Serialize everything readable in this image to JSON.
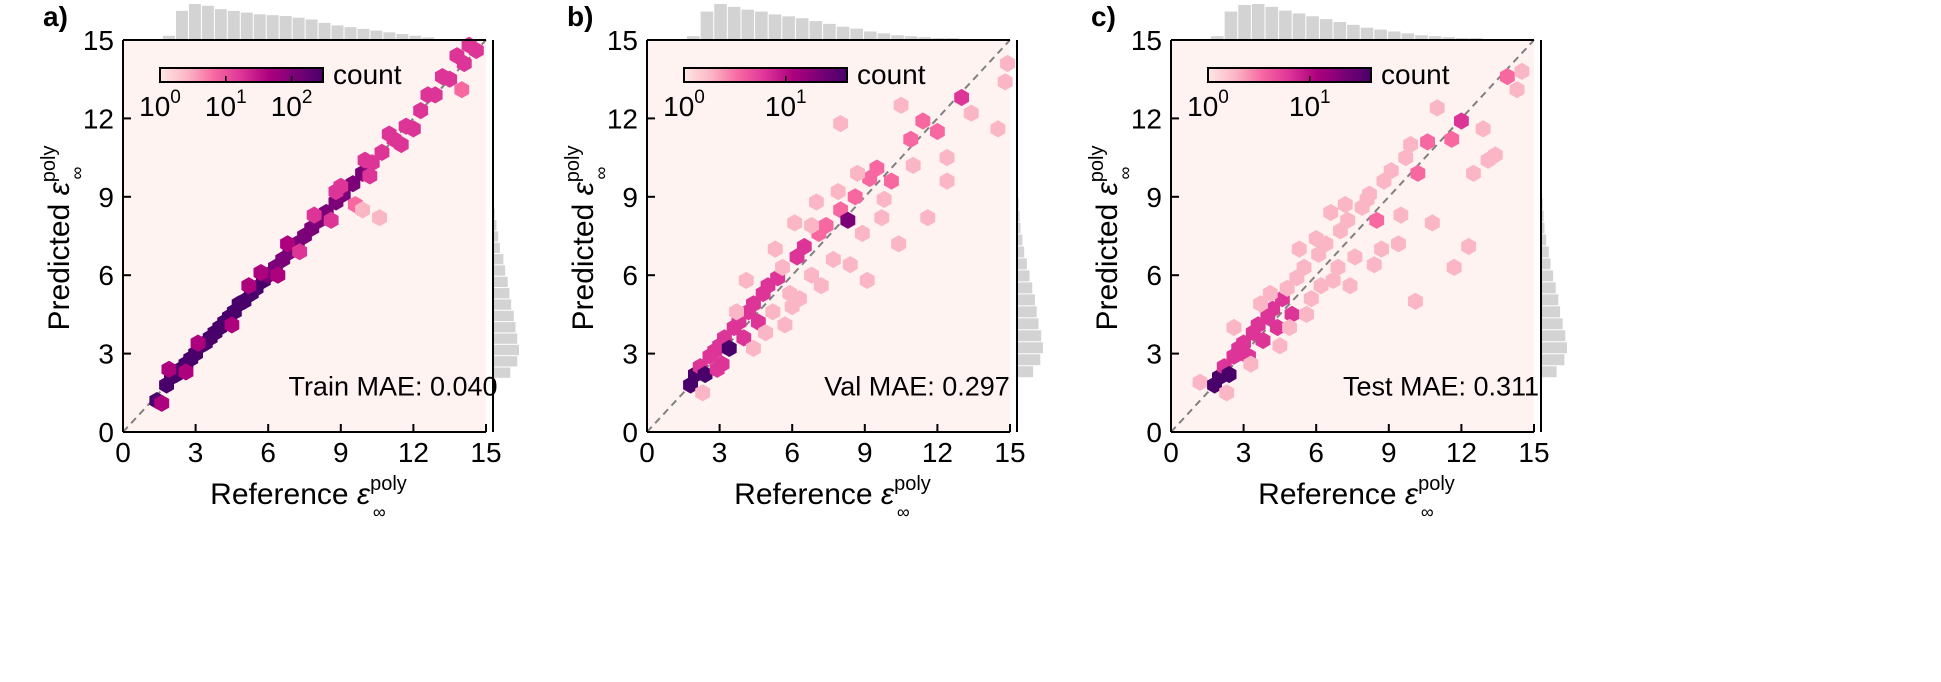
{
  "figure": {
    "colormap": [
      "#fde8e4",
      "#fbb6c6",
      "#f768a1",
      "#dd3497",
      "#ae017e",
      "#7a0177",
      "#49006a"
    ],
    "background_color": "#fff3f1",
    "histogram_color": "#d3d3d3",
    "diagonal_color": "#808080"
  },
  "chart_data": [
    {
      "type": "hexbin",
      "panel_label": "a)",
      "xlabel": "Reference ε∞poly",
      "ylabel": "Predicted ε∞poly",
      "xlim": [
        0,
        15
      ],
      "ylim": [
        0,
        15
      ],
      "ticks": [
        "0",
        "3",
        "6",
        "9",
        "12",
        "15"
      ],
      "annotation": "Train MAE: 0.040",
      "colorbar": {
        "label": "count",
        "scale": "log",
        "range": [
          1,
          300
        ],
        "tick_labels": [
          "10^0",
          "10^1",
          "10^2"
        ]
      },
      "legend_position": "top-left",
      "diagonal": "y = x",
      "mae": 0.04,
      "hist_x": [
        5,
        34,
        42,
        40,
        36,
        34,
        32,
        30,
        29,
        28,
        26,
        24,
        20,
        17,
        15,
        13,
        11,
        9,
        7,
        5,
        3
      ],
      "hist_y": [
        0,
        20,
        28,
        30,
        28,
        26,
        24,
        21,
        19,
        17,
        14,
        12,
        8,
        6,
        4,
        2,
        1,
        1,
        1
      ],
      "points": [
        [
          1.4,
          1.2
        ],
        [
          1.6,
          1.1
        ],
        [
          1.8,
          1.8
        ],
        [
          2.0,
          2.1
        ],
        [
          2.2,
          2.2
        ],
        [
          2.4,
          2.4
        ],
        [
          2.6,
          2.6
        ],
        [
          2.8,
          2.8
        ],
        [
          3.0,
          3.0
        ],
        [
          3.2,
          3.3
        ],
        [
          3.4,
          3.4
        ],
        [
          3.6,
          3.6
        ],
        [
          3.8,
          3.8
        ],
        [
          4.0,
          4.0
        ],
        [
          4.2,
          4.2
        ],
        [
          4.4,
          4.4
        ],
        [
          4.6,
          4.6
        ],
        [
          4.8,
          4.9
        ],
        [
          5.0,
          5.0
        ],
        [
          5.3,
          5.3
        ],
        [
          5.5,
          5.5
        ],
        [
          5.8,
          5.8
        ],
        [
          6.0,
          6.0
        ],
        [
          6.3,
          6.3
        ],
        [
          6.6,
          6.6
        ],
        [
          6.9,
          6.9
        ],
        [
          7.2,
          7.2
        ],
        [
          7.5,
          7.5
        ],
        [
          7.8,
          7.8
        ],
        [
          8.1,
          8.1
        ],
        [
          8.4,
          8.4
        ],
        [
          8.8,
          8.8
        ],
        [
          9.1,
          9.1
        ],
        [
          9.5,
          9.5
        ],
        [
          9.9,
          9.9
        ],
        [
          10.3,
          10.3
        ],
        [
          10.7,
          10.7
        ],
        [
          11.2,
          11.2
        ],
        [
          11.7,
          11.7
        ],
        [
          12.3,
          12.3
        ],
        [
          12.9,
          12.9
        ],
        [
          13.5,
          13.5
        ],
        [
          14.1,
          14.1
        ],
        [
          14.6,
          14.6
        ],
        [
          4.5,
          4.1
        ],
        [
          5.2,
          5.6
        ],
        [
          6.8,
          7.2
        ],
        [
          7.3,
          6.9
        ],
        [
          8.6,
          8.1
        ],
        [
          9.0,
          9.4
        ],
        [
          10.0,
          10.4
        ],
        [
          11.0,
          11.4
        ],
        [
          12.0,
          11.6
        ],
        [
          13.2,
          13.6
        ],
        [
          14.0,
          13.1
        ],
        [
          8.8,
          9.2
        ],
        [
          9.6,
          8.7
        ],
        [
          10.2,
          9.8
        ],
        [
          3.1,
          3.4
        ],
        [
          2.6,
          2.3
        ],
        [
          5.7,
          6.1
        ],
        [
          6.4,
          6.0
        ],
        [
          7.9,
          8.3
        ],
        [
          11.5,
          11.0
        ],
        [
          12.6,
          12.9
        ],
        [
          13.8,
          14.4
        ],
        [
          9.9,
          8.5
        ],
        [
          10.6,
          8.2
        ],
        [
          14.3,
          14.8
        ],
        [
          1.9,
          2.4
        ]
      ]
    },
    {
      "type": "hexbin",
      "panel_label": "b)",
      "xlabel": "Reference ε∞poly",
      "ylabel": "Predicted ε∞poly",
      "xlim": [
        0,
        15
      ],
      "ylim": [
        0,
        15
      ],
      "ticks": [
        "0",
        "3",
        "6",
        "9",
        "12",
        "15"
      ],
      "annotation": "Val MAE: 0.297",
      "colorbar": {
        "label": "count",
        "scale": "log",
        "range": [
          1,
          40
        ],
        "tick_labels": [
          "10^0",
          "10^1"
        ]
      },
      "legend_position": "top-left",
      "diagonal": "y = x",
      "mae": 0.297,
      "hist_x": [
        4,
        30,
        38,
        35,
        32,
        30,
        27,
        25,
        23,
        20,
        17,
        14,
        12,
        9,
        7,
        5,
        4,
        3,
        2,
        2
      ],
      "hist_y": [
        0,
        18,
        26,
        29,
        27,
        24,
        22,
        20,
        17,
        14,
        11,
        8,
        6,
        4,
        3,
        2,
        1,
        1
      ],
      "points": [
        [
          1.8,
          1.8
        ],
        [
          2.0,
          2.2
        ],
        [
          2.2,
          2.5
        ],
        [
          2.4,
          2.2
        ],
        [
          2.6,
          2.9
        ],
        [
          2.8,
          3.1
        ],
        [
          3.0,
          3.3
        ],
        [
          3.2,
          3.6
        ],
        [
          3.4,
          3.2
        ],
        [
          3.6,
          4.0
        ],
        [
          3.8,
          4.2
        ],
        [
          4.0,
          3.6
        ],
        [
          4.2,
          4.6
        ],
        [
          4.4,
          4.9
        ],
        [
          4.6,
          4.2
        ],
        [
          4.8,
          5.3
        ],
        [
          5.0,
          5.6
        ],
        [
          5.2,
          4.6
        ],
        [
          5.4,
          5.9
        ],
        [
          5.6,
          6.3
        ],
        [
          5.9,
          5.3
        ],
        [
          6.2,
          6.7
        ],
        [
          6.5,
          7.1
        ],
        [
          6.8,
          6.0
        ],
        [
          7.1,
          7.6
        ],
        [
          7.4,
          7.9
        ],
        [
          7.7,
          6.6
        ],
        [
          8.0,
          8.5
        ],
        [
          8.3,
          8.1
        ],
        [
          8.6,
          9.0
        ],
        [
          8.9,
          7.6
        ],
        [
          9.2,
          9.7
        ],
        [
          9.5,
          10.1
        ],
        [
          9.8,
          8.9
        ],
        [
          10.1,
          9.6
        ],
        [
          10.5,
          12.5
        ],
        [
          11.0,
          10.2
        ],
        [
          11.4,
          11.9
        ],
        [
          12.0,
          11.5
        ],
        [
          12.4,
          10.5
        ],
        [
          13.0,
          12.8
        ],
        [
          13.4,
          12.2
        ],
        [
          14.5,
          11.6
        ],
        [
          14.8,
          13.4
        ],
        [
          14.9,
          14.1
        ],
        [
          2.3,
          1.5
        ],
        [
          3.1,
          2.6
        ],
        [
          4.1,
          5.8
        ],
        [
          4.9,
          3.8
        ],
        [
          5.7,
          4.1
        ],
        [
          6.3,
          5.1
        ],
        [
          6.8,
          7.9
        ],
        [
          7.2,
          5.6
        ],
        [
          7.9,
          9.2
        ],
        [
          8.4,
          6.4
        ],
        [
          9.1,
          5.8
        ],
        [
          9.7,
          8.2
        ],
        [
          10.4,
          7.2
        ],
        [
          11.6,
          8.2
        ],
        [
          12.4,
          9.6
        ],
        [
          6.1,
          8.0
        ],
        [
          5.3,
          7.0
        ],
        [
          7.0,
          8.8
        ],
        [
          8.7,
          9.9
        ],
        [
          3.7,
          4.6
        ],
        [
          4.4,
          3.2
        ],
        [
          2.9,
          2.4
        ],
        [
          8.0,
          11.8
        ],
        [
          6.0,
          4.8
        ],
        [
          10.9,
          11.2
        ]
      ]
    },
    {
      "type": "hexbin",
      "panel_label": "c)",
      "xlabel": "Reference ε∞poly",
      "ylabel": "Predicted ε∞poly",
      "xlim": [
        0,
        15
      ],
      "ylim": [
        0,
        15
      ],
      "ticks": [
        "0",
        "3",
        "6",
        "9",
        "12",
        "15"
      ],
      "annotation": "Test MAE: 0.311",
      "colorbar": {
        "label": "count",
        "scale": "log",
        "range": [
          1,
          40
        ],
        "tick_labels": [
          "10^0",
          "10^1"
        ]
      },
      "legend_position": "top-left",
      "diagonal": "y = x",
      "mae": 0.311,
      "hist_x": [
        4,
        30,
        37,
        38,
        35,
        31,
        28,
        25,
        22,
        19,
        16,
        13,
        11,
        9,
        7,
        5,
        4,
        3,
        2,
        2
      ],
      "hist_y": [
        0,
        18,
        27,
        30,
        28,
        25,
        22,
        20,
        17,
        14,
        11,
        9,
        6,
        4,
        3,
        2,
        1,
        1
      ],
      "points": [
        [
          1.2,
          1.9
        ],
        [
          1.8,
          1.8
        ],
        [
          2.0,
          2.1
        ],
        [
          2.2,
          2.5
        ],
        [
          2.4,
          2.2
        ],
        [
          2.6,
          2.9
        ],
        [
          2.8,
          3.2
        ],
        [
          3.0,
          3.4
        ],
        [
          3.2,
          2.9
        ],
        [
          3.4,
          3.8
        ],
        [
          3.6,
          4.1
        ],
        [
          3.8,
          3.5
        ],
        [
          4.0,
          4.4
        ],
        [
          4.2,
          4.7
        ],
        [
          4.4,
          4.0
        ],
        [
          4.6,
          5.1
        ],
        [
          4.8,
          5.5
        ],
        [
          5.0,
          4.5
        ],
        [
          5.2,
          5.9
        ],
        [
          5.5,
          6.3
        ],
        [
          5.8,
          5.1
        ],
        [
          6.1,
          6.8
        ],
        [
          6.4,
          7.2
        ],
        [
          6.7,
          5.8
        ],
        [
          7.0,
          7.7
        ],
        [
          7.3,
          8.1
        ],
        [
          7.6,
          6.7
        ],
        [
          7.9,
          8.6
        ],
        [
          8.2,
          9.1
        ],
        [
          8.5,
          8.1
        ],
        [
          8.8,
          9.6
        ],
        [
          9.1,
          10.0
        ],
        [
          9.4,
          7.2
        ],
        [
          9.7,
          10.5
        ],
        [
          10.2,
          9.9
        ],
        [
          10.6,
          11.1
        ],
        [
          11.0,
          12.4
        ],
        [
          11.6,
          11.2
        ],
        [
          12.0,
          11.9
        ],
        [
          12.5,
          9.9
        ],
        [
          12.9,
          11.6
        ],
        [
          13.4,
          10.6
        ],
        [
          13.9,
          13.6
        ],
        [
          14.3,
          13.1
        ],
        [
          14.5,
          13.8
        ],
        [
          2.6,
          4.0
        ],
        [
          3.3,
          2.6
        ],
        [
          4.1,
          5.3
        ],
        [
          4.9,
          4.0
        ],
        [
          5.6,
          4.5
        ],
        [
          6.2,
          5.6
        ],
        [
          6.9,
          6.3
        ],
        [
          7.4,
          5.6
        ],
        [
          8.1,
          8.9
        ],
        [
          8.7,
          7.0
        ],
        [
          9.5,
          8.3
        ],
        [
          10.1,
          5.0
        ],
        [
          10.8,
          8.0
        ],
        [
          11.7,
          6.3
        ],
        [
          12.3,
          7.1
        ],
        [
          6.0,
          7.4
        ],
        [
          5.3,
          7.0
        ],
        [
          7.2,
          8.7
        ],
        [
          3.7,
          4.9
        ],
        [
          4.5,
          3.3
        ],
        [
          9.9,
          11.0
        ],
        [
          13.1,
          10.4
        ],
        [
          8.4,
          6.4
        ],
        [
          2.3,
          1.5
        ],
        [
          6.6,
          8.4
        ]
      ]
    }
  ]
}
